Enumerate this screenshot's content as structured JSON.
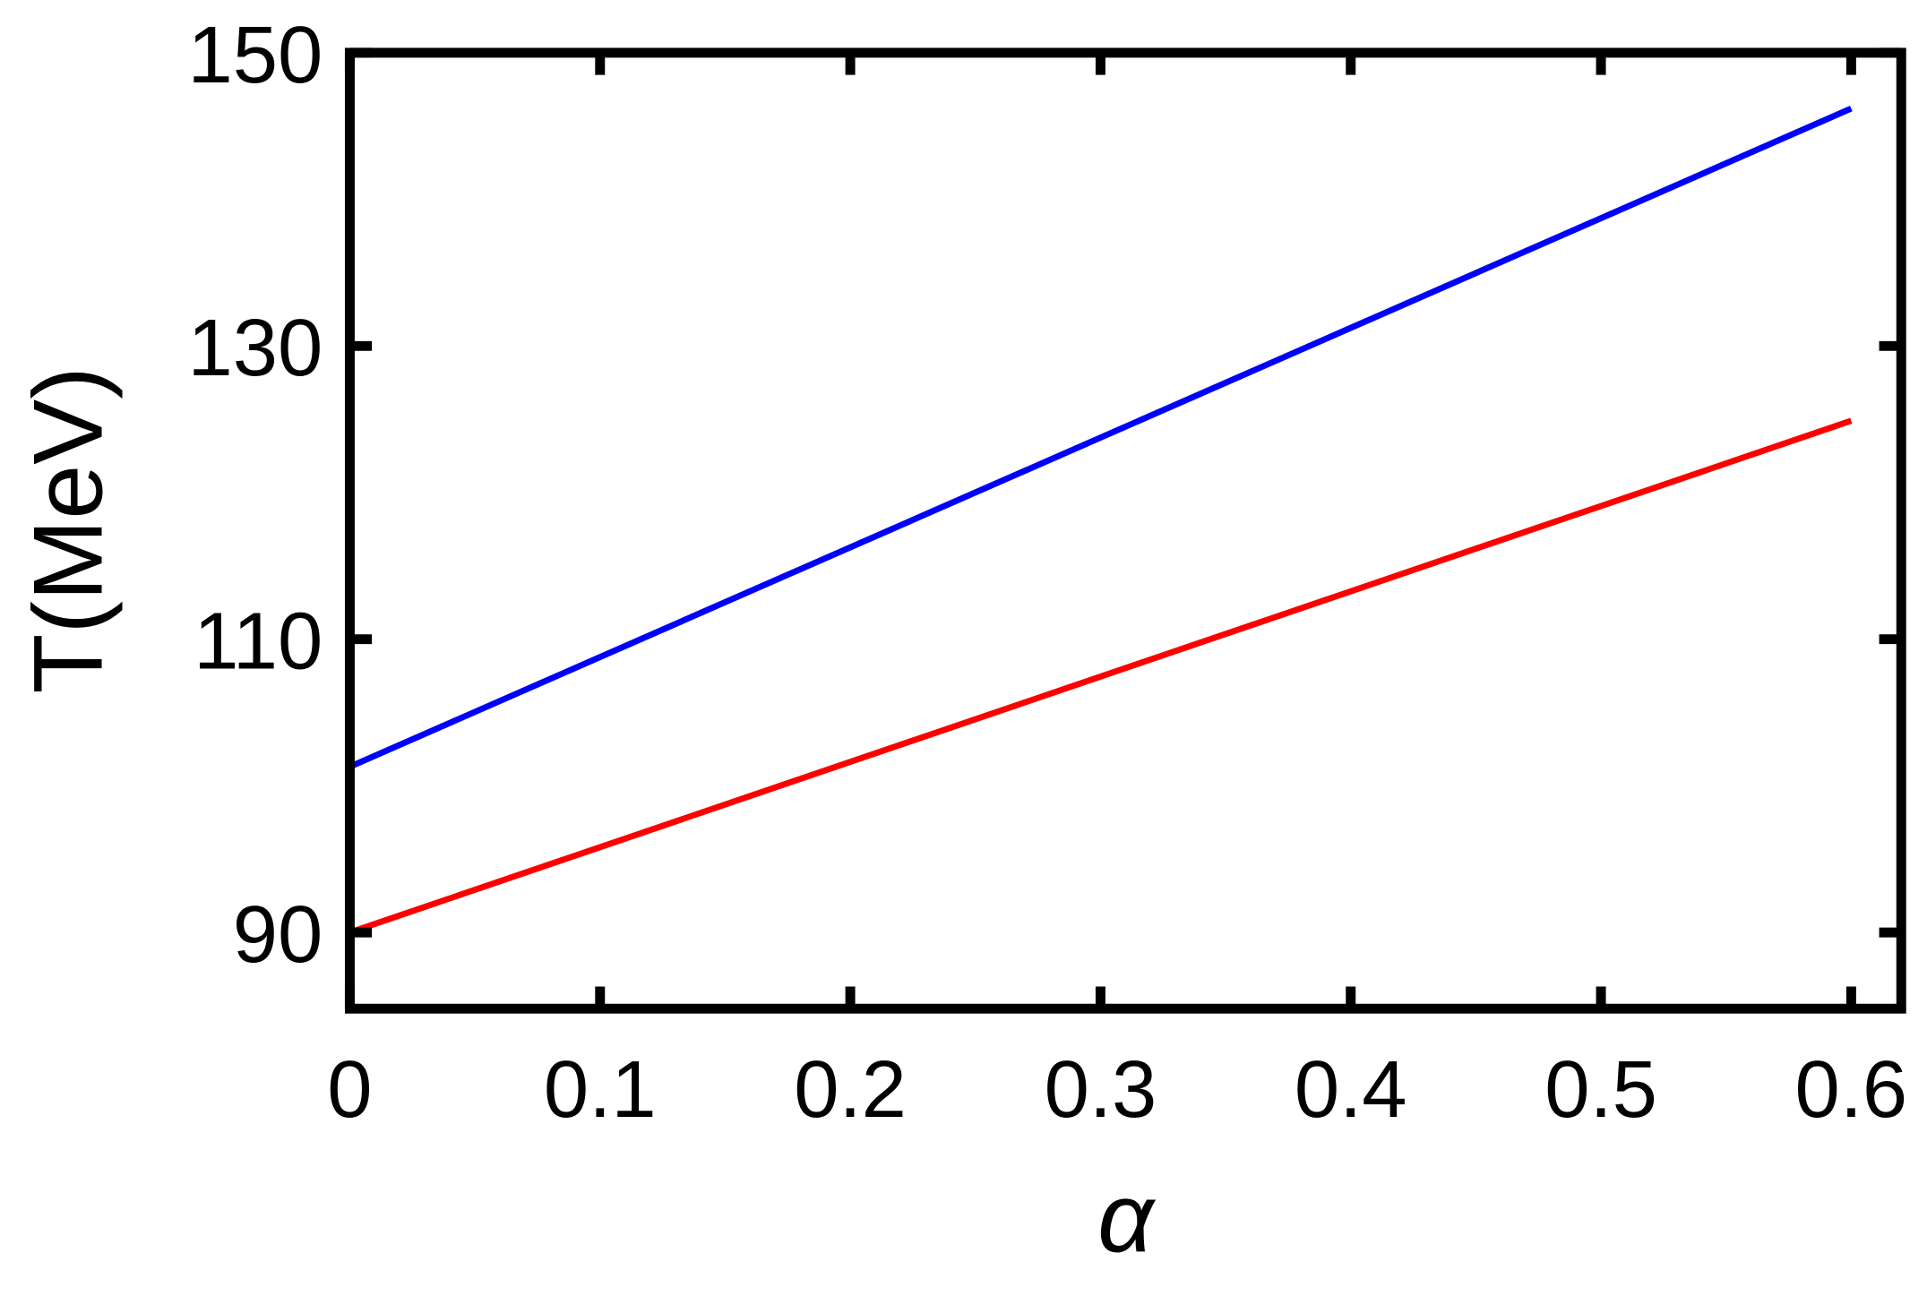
{
  "chart_data": {
    "type": "line",
    "x_label": "α",
    "y_label": "T(MeV)",
    "x": [
      0,
      0.6
    ],
    "series": [
      {
        "color": "#0000ff",
        "values": [
          101.3,
          146.2
        ]
      },
      {
        "color": "#ff0000",
        "values": [
          90,
          124.9
        ]
      }
    ],
    "xlim": [
      0,
      0.62
    ],
    "ylim": [
      84.8,
      150
    ],
    "xticks": [
      0,
      0.1,
      0.2,
      0.3,
      0.4,
      0.5,
      0.6
    ],
    "yticks": [
      90,
      110,
      130,
      150
    ]
  }
}
